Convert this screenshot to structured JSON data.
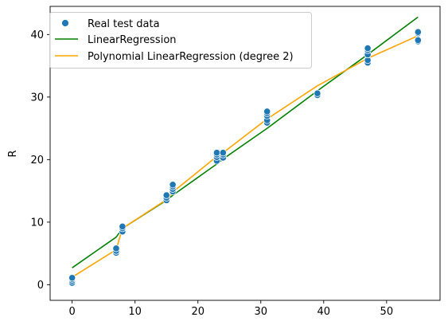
{
  "chart_data": {
    "type": "scatter",
    "title": "",
    "xlabel": "",
    "ylabel": "R",
    "xlim": [
      -3.5,
      58.5
    ],
    "ylim": [
      -2.5,
      44.5
    ],
    "xticks": [
      0,
      10,
      20,
      30,
      40,
      50
    ],
    "yticks": [
      0,
      10,
      20,
      30,
      40
    ],
    "grid": false,
    "legend_position": "top-left",
    "scatter": {
      "name": "Real test data",
      "color": "#1f77b4",
      "points": [
        [
          0,
          0.3
        ],
        [
          0,
          0.6
        ],
        [
          0,
          0.9
        ],
        [
          0,
          1.1
        ],
        [
          7,
          5.1
        ],
        [
          7,
          5.4
        ],
        [
          7,
          5.8
        ],
        [
          8,
          8.5
        ],
        [
          8,
          9.0
        ],
        [
          8,
          9.3
        ],
        [
          15,
          13.5
        ],
        [
          15,
          13.9
        ],
        [
          15,
          14.3
        ],
        [
          16,
          14.9
        ],
        [
          16,
          15.3
        ],
        [
          16,
          15.7
        ],
        [
          16,
          16.0
        ],
        [
          23,
          19.8
        ],
        [
          23,
          20.4
        ],
        [
          23,
          20.8
        ],
        [
          23,
          21.1
        ],
        [
          24,
          20.3
        ],
        [
          24,
          20.8
        ],
        [
          24,
          21.1
        ],
        [
          31,
          25.9
        ],
        [
          31,
          26.3
        ],
        [
          31,
          27.0
        ],
        [
          31,
          27.4
        ],
        [
          31,
          27.7
        ],
        [
          39,
          30.3
        ],
        [
          39,
          30.6
        ],
        [
          47,
          35.5
        ],
        [
          47,
          35.9
        ],
        [
          47,
          36.8
        ],
        [
          47,
          37.5
        ],
        [
          47,
          37.8
        ],
        [
          55,
          38.9
        ],
        [
          55,
          39.1
        ],
        [
          55,
          40.2
        ],
        [
          55,
          40.4
        ]
      ]
    },
    "series": [
      {
        "name": "LinearRegression",
        "color": "#008000",
        "x": [
          0,
          7,
          8,
          15,
          16,
          23,
          24,
          31,
          39,
          47,
          55
        ],
        "y": [
          2.7,
          7.6,
          9.0,
          13.5,
          14.3,
          19.3,
          20.1,
          25.0,
          31.0,
          36.8,
          42.8
        ]
      },
      {
        "name": "Polynomial LinearRegression (degree 2)",
        "color": "#ffa500",
        "x": [
          0,
          7,
          8,
          15,
          16,
          23,
          24,
          31,
          39,
          47,
          55
        ],
        "y": [
          1.2,
          5.6,
          9.0,
          13.6,
          14.8,
          20.5,
          21.1,
          26.5,
          31.8,
          36.2,
          39.8
        ]
      }
    ]
  }
}
